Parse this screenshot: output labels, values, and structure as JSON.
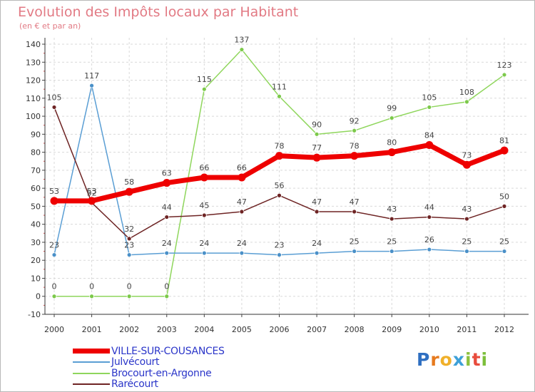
{
  "title": "Evolution des Impôts locaux par Habitant",
  "subtitle": "(en € et par an)",
  "brand": "Proxiti",
  "chart_data": {
    "type": "line",
    "title": "Evolution des Impôts locaux par Habitant",
    "subtitle": "(en € et par an)",
    "xlabel": "",
    "ylabel": "",
    "ylim": [
      -10,
      140
    ],
    "yticks": [
      -10,
      0,
      10,
      20,
      30,
      40,
      50,
      60,
      70,
      80,
      90,
      100,
      110,
      120,
      130,
      140
    ],
    "grid": true,
    "legend": "bottom-left",
    "x": [
      "2000",
      "2001",
      "2002",
      "2003",
      "2004",
      "2005",
      "2006",
      "2007",
      "2008",
      "2009",
      "2010",
      "2011",
      "2012"
    ],
    "series": [
      {
        "name": "VILLE-SUR-COUSANCES",
        "color": "#ee0000",
        "values": [
          53,
          53,
          58,
          63,
          66,
          66,
          78,
          77,
          78,
          80,
          84,
          73,
          81
        ]
      },
      {
        "name": "Julvécourt",
        "color": "#5a9ed4",
        "values": [
          23,
          117,
          23,
          24,
          24,
          24,
          23,
          24,
          25,
          25,
          26,
          25,
          25
        ]
      },
      {
        "name": "Brocourt-en-Argonne",
        "color": "#8fd65c",
        "values": [
          0,
          0,
          0,
          0,
          115,
          137,
          111,
          90,
          92,
          99,
          105,
          108,
          123
        ]
      },
      {
        "name": "Rarécourt",
        "color": "#6e2424",
        "values": [
          105,
          52,
          32,
          44,
          45,
          47,
          56,
          47,
          47,
          43,
          44,
          43,
          50
        ]
      }
    ]
  }
}
